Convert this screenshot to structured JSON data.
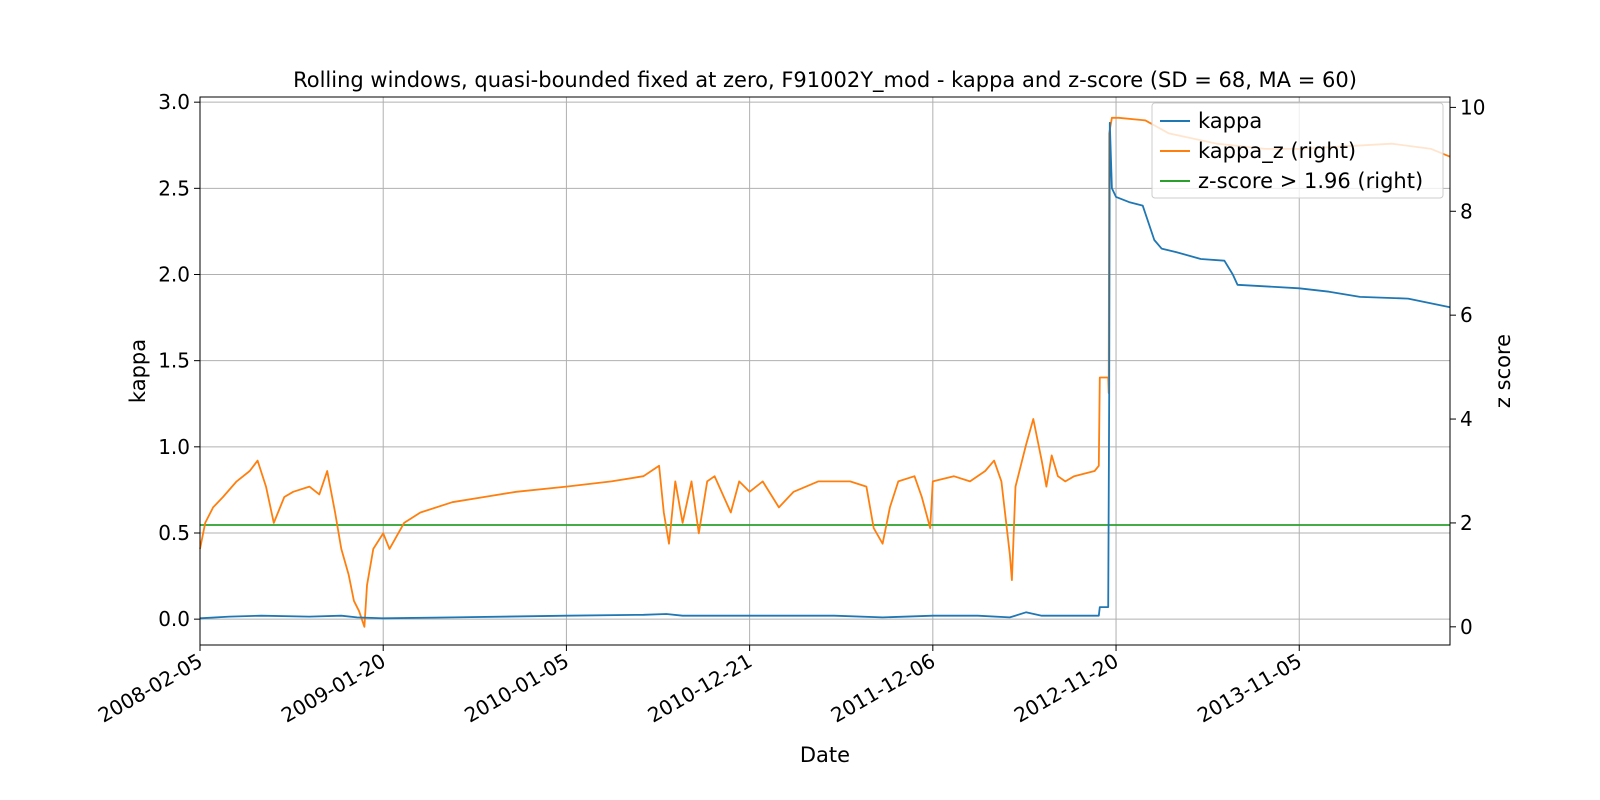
{
  "chart_data": {
    "type": "line",
    "title": "Rolling windows, quasi-bounded fixed at zero, F91002Y_mod - kappa and z-score (SD = 68, MA = 60)",
    "xlabel": "Date",
    "ylabel_left": "kappa",
    "ylabel_right": "z score",
    "x_range": [
      "2008-02-05",
      "2014-08-20"
    ],
    "x_ticks": [
      "2008-02-05",
      "2009-01-20",
      "2010-01-05",
      "2010-12-21",
      "2011-12-06",
      "2012-11-20",
      "2013-11-05"
    ],
    "ylim_left": [
      -0.15,
      3.03
    ],
    "ylim_right": [
      -0.35,
      10.2
    ],
    "y_ticks_left": [
      "0.0",
      "0.5",
      "1.0",
      "1.5",
      "2.0",
      "2.5",
      "3.0"
    ],
    "y_ticks_right": [
      "0",
      "2",
      "4",
      "6",
      "8",
      "10"
    ],
    "grid": true,
    "legend_position": "top-right",
    "series": [
      {
        "name": "kappa",
        "axis": "left",
        "color": "#1f77b4",
        "points": [
          [
            "2008-02-05",
            0.005
          ],
          [
            "2008-04-01",
            0.015
          ],
          [
            "2008-06-01",
            0.02
          ],
          [
            "2008-09-01",
            0.015
          ],
          [
            "2008-11-01",
            0.02
          ],
          [
            "2008-12-01",
            0.01
          ],
          [
            "2009-01-20",
            0.005
          ],
          [
            "2009-06-01",
            0.01
          ],
          [
            "2010-01-05",
            0.02
          ],
          [
            "2010-06-01",
            0.025
          ],
          [
            "2010-07-15",
            0.03
          ],
          [
            "2010-08-15",
            0.02
          ],
          [
            "2010-12-21",
            0.02
          ],
          [
            "2011-06-01",
            0.02
          ],
          [
            "2011-09-01",
            0.01
          ],
          [
            "2011-12-06",
            0.02
          ],
          [
            "2012-03-01",
            0.02
          ],
          [
            "2012-05-01",
            0.01
          ],
          [
            "2012-06-01",
            0.04
          ],
          [
            "2012-07-01",
            0.02
          ],
          [
            "2012-10-18",
            0.02
          ],
          [
            "2012-10-20",
            0.07
          ],
          [
            "2012-11-05",
            0.07
          ],
          [
            "2012-11-07",
            1.3
          ],
          [
            "2012-11-08",
            2.88
          ],
          [
            "2012-11-12",
            2.5
          ],
          [
            "2012-11-20",
            2.45
          ],
          [
            "2012-12-15",
            2.42
          ],
          [
            "2013-01-10",
            2.4
          ],
          [
            "2013-02-01",
            2.2
          ],
          [
            "2013-02-15",
            2.15
          ],
          [
            "2013-03-15",
            2.13
          ],
          [
            "2013-05-01",
            2.09
          ],
          [
            "2013-06-15",
            2.08
          ],
          [
            "2013-07-01",
            2.0
          ],
          [
            "2013-07-10",
            1.94
          ],
          [
            "2013-11-05",
            1.92
          ],
          [
            "2014-01-01",
            1.9
          ],
          [
            "2014-03-01",
            1.87
          ],
          [
            "2014-06-01",
            1.86
          ],
          [
            "2014-08-20",
            1.81
          ]
        ]
      },
      {
        "name": "kappa_z (right)",
        "axis": "right",
        "color": "#ff7f0e",
        "points": [
          [
            "2008-02-05",
            1.5
          ],
          [
            "2008-02-15",
            2.0
          ],
          [
            "2008-03-01",
            2.3
          ],
          [
            "2008-03-20",
            2.5
          ],
          [
            "2008-04-15",
            2.8
          ],
          [
            "2008-05-10",
            3.0
          ],
          [
            "2008-05-25",
            3.2
          ],
          [
            "2008-06-10",
            2.7
          ],
          [
            "2008-06-25",
            2.0
          ],
          [
            "2008-07-15",
            2.5
          ],
          [
            "2008-08-01",
            2.6
          ],
          [
            "2008-09-01",
            2.7
          ],
          [
            "2008-09-20",
            2.55
          ],
          [
            "2008-10-05",
            3.0
          ],
          [
            "2008-10-20",
            2.2
          ],
          [
            "2008-11-01",
            1.5
          ],
          [
            "2008-11-15",
            1.0
          ],
          [
            "2008-11-25",
            0.5
          ],
          [
            "2008-12-05",
            0.3
          ],
          [
            "2008-12-15",
            0.0
          ],
          [
            "2008-12-20",
            0.8
          ],
          [
            "2009-01-01",
            1.5
          ],
          [
            "2009-01-20",
            1.8
          ],
          [
            "2009-02-01",
            1.5
          ],
          [
            "2009-03-01",
            2.0
          ],
          [
            "2009-04-01",
            2.2
          ],
          [
            "2009-06-01",
            2.4
          ],
          [
            "2009-08-01",
            2.5
          ],
          [
            "2009-10-01",
            2.6
          ],
          [
            "2010-01-05",
            2.7
          ],
          [
            "2010-04-01",
            2.8
          ],
          [
            "2010-06-01",
            2.9
          ],
          [
            "2010-07-01",
            3.1
          ],
          [
            "2010-07-10",
            2.2
          ],
          [
            "2010-07-20",
            1.6
          ],
          [
            "2010-08-01",
            2.8
          ],
          [
            "2010-08-15",
            2.0
          ],
          [
            "2010-09-01",
            2.8
          ],
          [
            "2010-09-15",
            1.8
          ],
          [
            "2010-10-01",
            2.8
          ],
          [
            "2010-10-15",
            2.9
          ],
          [
            "2010-11-15",
            2.2
          ],
          [
            "2010-12-01",
            2.8
          ],
          [
            "2010-12-21",
            2.6
          ],
          [
            "2011-01-15",
            2.8
          ],
          [
            "2011-02-15",
            2.3
          ],
          [
            "2011-03-15",
            2.6
          ],
          [
            "2011-05-01",
            2.8
          ],
          [
            "2011-07-01",
            2.8
          ],
          [
            "2011-08-01",
            2.7
          ],
          [
            "2011-08-15",
            1.9
          ],
          [
            "2011-09-01",
            1.6
          ],
          [
            "2011-09-15",
            2.3
          ],
          [
            "2011-10-01",
            2.8
          ],
          [
            "2011-11-01",
            2.9
          ],
          [
            "2011-11-15",
            2.5
          ],
          [
            "2011-12-01",
            1.9
          ],
          [
            "2011-12-06",
            2.8
          ],
          [
            "2012-01-15",
            2.9
          ],
          [
            "2012-02-15",
            2.8
          ],
          [
            "2012-03-15",
            3.0
          ],
          [
            "2012-04-01",
            3.2
          ],
          [
            "2012-04-15",
            2.8
          ],
          [
            "2012-05-01",
            1.4
          ],
          [
            "2012-05-05",
            0.9
          ],
          [
            "2012-05-12",
            2.7
          ],
          [
            "2012-06-01",
            3.5
          ],
          [
            "2012-06-15",
            4.0
          ],
          [
            "2012-07-01",
            3.2
          ],
          [
            "2012-07-10",
            2.7
          ],
          [
            "2012-07-20",
            3.3
          ],
          [
            "2012-08-01",
            2.9
          ],
          [
            "2012-08-15",
            2.8
          ],
          [
            "2012-09-01",
            2.9
          ],
          [
            "2012-10-10",
            3.0
          ],
          [
            "2012-10-18",
            3.1
          ],
          [
            "2012-10-20",
            4.8
          ],
          [
            "2012-11-05",
            4.8
          ],
          [
            "2012-11-06",
            4.5
          ],
          [
            "2012-11-07",
            9.5
          ],
          [
            "2012-11-12",
            9.8
          ],
          [
            "2012-11-25",
            9.8
          ],
          [
            "2013-01-15",
            9.75
          ],
          [
            "2013-03-01",
            9.5
          ],
          [
            "2013-06-01",
            9.3
          ],
          [
            "2013-09-01",
            9.2
          ],
          [
            "2013-11-05",
            9.2
          ],
          [
            "2014-02-01",
            9.25
          ],
          [
            "2014-05-01",
            9.3
          ],
          [
            "2014-07-15",
            9.2
          ],
          [
            "2014-08-20",
            9.05
          ]
        ]
      },
      {
        "name": "z-score > 1.96 (right)",
        "axis": "right",
        "color": "#2ca02c",
        "points": [
          [
            "2008-02-05",
            1.96
          ],
          [
            "2014-08-20",
            1.96
          ]
        ]
      }
    ]
  }
}
